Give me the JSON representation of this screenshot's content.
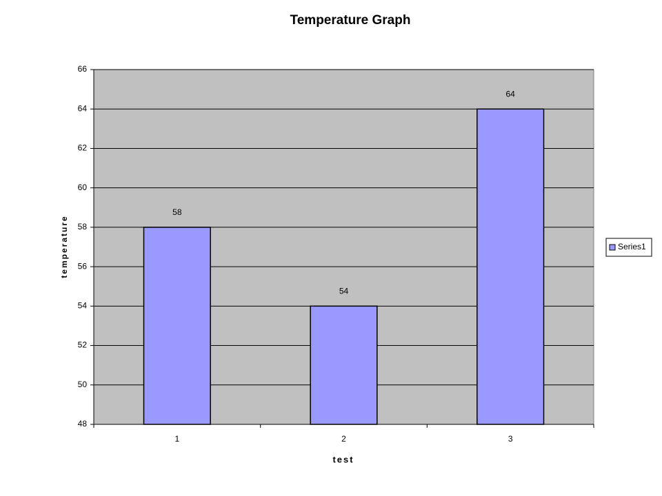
{
  "chart_data": {
    "type": "bar",
    "title": "Temperature Graph",
    "x_label": "test",
    "y_label": "temperature",
    "categories": [
      "1",
      "2",
      "3"
    ],
    "series": [
      {
        "name": "Series1",
        "color": "#9999ff",
        "values": [
          58,
          54,
          64
        ]
      }
    ],
    "ylim": [
      48,
      66
    ],
    "yticks": [
      48,
      50,
      52,
      54,
      56,
      58,
      60,
      62,
      64,
      66
    ],
    "grid": true,
    "legend": "right",
    "plot_background": "#c0c0c0"
  }
}
